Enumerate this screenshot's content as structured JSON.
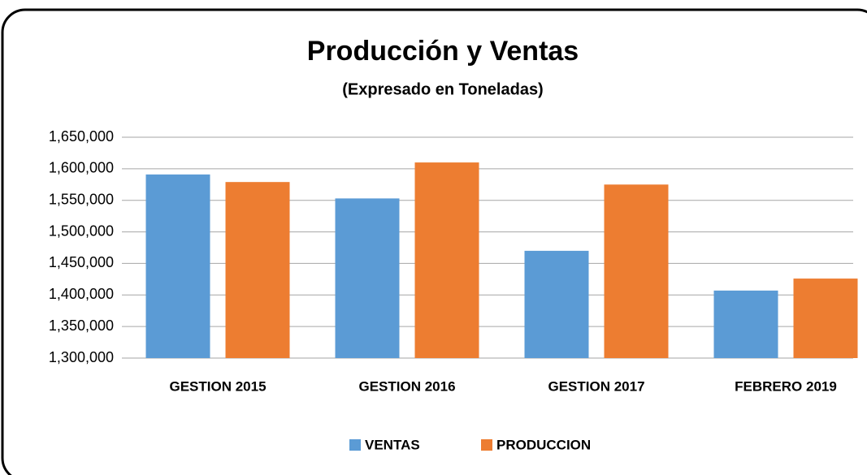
{
  "chart_data": {
    "type": "bar",
    "title": "Producción y Ventas",
    "subtitle": "(Expresado en Toneladas)",
    "categories": [
      "GESTION 2015",
      "GESTION 2016",
      "GESTION 2017",
      "FEBRERO 2019"
    ],
    "series": [
      {
        "name": "VENTAS",
        "color": "#5b9bd5",
        "values": [
          1591000,
          1553000,
          1470000,
          1407000
        ]
      },
      {
        "name": "PRODUCCION",
        "color": "#ed7d31",
        "values": [
          1579000,
          1610000,
          1575000,
          1426000
        ]
      }
    ],
    "ylim": [
      1300000,
      1650000
    ],
    "yticks": [
      {
        "value": 1300000,
        "label": "1,300,000"
      },
      {
        "value": 1350000,
        "label": "1,350,000"
      },
      {
        "value": 1400000,
        "label": "1,400,000"
      },
      {
        "value": 1450000,
        "label": "1,450,000"
      },
      {
        "value": 1500000,
        "label": "1,500,000"
      },
      {
        "value": 1550000,
        "label": "1,550,000"
      },
      {
        "value": 1600000,
        "label": "1,600,000"
      },
      {
        "value": 1650000,
        "label": "1,650,000"
      }
    ],
    "grid": true,
    "legend": "bottom"
  }
}
